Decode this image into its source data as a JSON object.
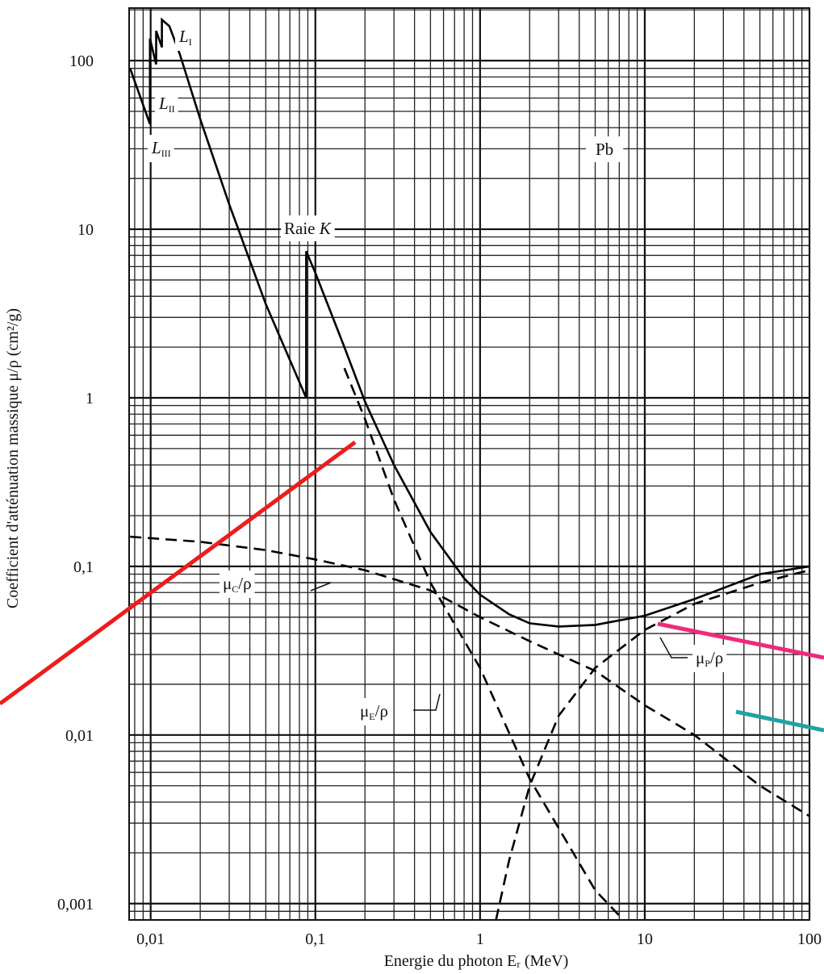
{
  "chart_data": {
    "type": "line",
    "log_x": true,
    "log_y": true,
    "grid": true,
    "minor_grid": true,
    "x_label": "Energie du photon Eᵣ (MeV)",
    "y_label": "Coefficient d'atténuation massique μ/ρ (cm²/g)",
    "xlim": [
      0.0074,
      100
    ],
    "ylim": [
      0.0008,
      205
    ],
    "xticks": [
      {
        "value": 0.01,
        "label": "0,01"
      },
      {
        "value": 0.1,
        "label": "0,1"
      },
      1,
      10,
      100
    ],
    "yticks": [
      {
        "value": 0.001,
        "label": "0,001"
      },
      {
        "value": 0.01,
        "label": "0,01"
      },
      {
        "value": 0.1,
        "label": "0,1"
      },
      1,
      10,
      100
    ],
    "series": [
      {
        "name": "μ/ρ",
        "color": "#000000",
        "style": "solid",
        "x": [
          0.0075,
          0.0099,
          0.0099,
          0.0108,
          0.0108,
          0.0117,
          0.0117,
          0.013,
          0.015,
          0.02,
          0.03,
          0.05,
          0.088,
          0.088,
          0.1,
          0.15,
          0.2,
          0.3,
          0.5,
          0.8,
          1,
          1.5,
          2,
          3,
          5,
          8,
          10,
          20,
          50,
          100
        ],
        "values": [
          90,
          42,
          135,
          95,
          150,
          120,
          175,
          160,
          110,
          45,
          14,
          3.6,
          1.0,
          7.4,
          5.5,
          2.0,
          0.95,
          0.4,
          0.16,
          0.085,
          0.068,
          0.052,
          0.046,
          0.044,
          0.045,
          0.049,
          0.051,
          0.064,
          0.09,
          0.1
        ]
      },
      {
        "name": "μ_C/ρ",
        "color": "#000000",
        "style": "dashed",
        "x": [
          0.0075,
          0.02,
          0.05,
          0.1,
          0.2,
          0.5,
          1,
          2,
          5,
          10,
          20,
          50,
          100
        ],
        "values": [
          0.15,
          0.14,
          0.125,
          0.11,
          0.095,
          0.072,
          0.05,
          0.036,
          0.024,
          0.015,
          0.01,
          0.005,
          0.0033
        ]
      },
      {
        "name": "μ_E/ρ",
        "color": "#000000",
        "style": "dashed",
        "x": [
          0.15,
          0.2,
          0.3,
          0.5,
          1,
          2,
          5,
          7
        ],
        "values": [
          1.5,
          0.75,
          0.25,
          0.08,
          0.025,
          0.0055,
          0.0012,
          0.00085
        ]
      },
      {
        "name": "μ_P/ρ",
        "color": "#000000",
        "style": "dashed",
        "x": [
          1.25,
          1.5,
          2,
          3,
          5,
          10,
          20,
          50,
          100
        ],
        "values": [
          0.0008,
          0.0018,
          0.005,
          0.013,
          0.025,
          0.042,
          0.06,
          0.08,
          0.095
        ]
      }
    ],
    "annotations": [
      {
        "base": "L",
        "sub": "I"
      },
      {
        "base": "L",
        "sub": "II"
      },
      {
        "base": "L",
        "sub": "III"
      },
      {
        "base": "Pb"
      },
      {
        "base": "Raie ",
        "italic": "K"
      },
      {
        "base": "μ",
        "sub": "C",
        "tail": "/ρ"
      },
      {
        "base": "μ",
        "sub": "E",
        "tail": "/ρ"
      },
      {
        "base": "μ",
        "sub": "P",
        "tail": "/ρ"
      }
    ]
  }
}
